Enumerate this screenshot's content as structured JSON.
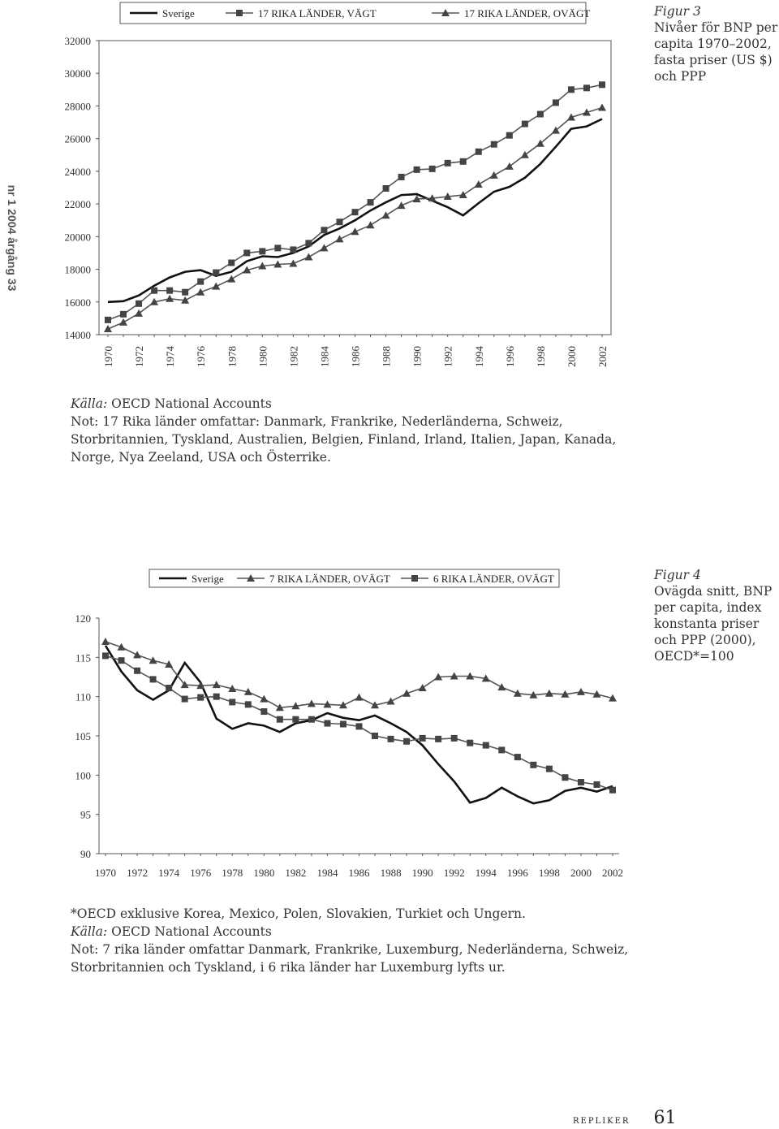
{
  "side_label": "nr 1 2004 årgång 33",
  "figure3": {
    "caption_title": "Figur 3",
    "caption_body": "Nivåer för BNP per capita 1970–2002, fasta priser (US $) och PPP",
    "source_label": "Källa:",
    "source": "OECD National Accounts",
    "note": "Not: 17 Rika länder omfattar: Danmark, Frankrike, Nederländerna, Schweiz, Storbritannien, Tyskland, Australien, Belgien, Finland, Irland, Italien, Japan, Kanada, Norge, Nya Zeeland, USA och Österrike."
  },
  "figure4": {
    "caption_title": "Figur 4",
    "caption_body": "Ovägda snitt, BNP per capita, index konstanta priser och PPP (2000), OECD*=100",
    "footnote": "*OECD exklusive Korea, Mexico, Polen, Slovakien, Turkiet och Ungern.",
    "source_label": "Källa:",
    "source": "OECD National Accounts",
    "note": "Not: 7 rika länder omfattar Danmark, Frankrike, Luxemburg, Nederländerna, Schweiz, Storbritannien och Tyskland, i 6 rika länder har Luxemburg lyfts ur."
  },
  "footer": {
    "journal": "repliker",
    "page": "61"
  },
  "chart_data": [
    {
      "type": "line",
      "title": "",
      "xlabel": "",
      "ylabel": "",
      "x": [
        1970,
        1971,
        1972,
        1973,
        1974,
        1975,
        1976,
        1977,
        1978,
        1979,
        1980,
        1981,
        1982,
        1983,
        1984,
        1985,
        1986,
        1987,
        1988,
        1989,
        1990,
        1991,
        1992,
        1993,
        1994,
        1995,
        1996,
        1997,
        1998,
        1999,
        2000,
        2001,
        2002
      ],
      "xticks": [
        "1970",
        "1972",
        "1974",
        "1976",
        "1978",
        "1980",
        "1982",
        "1984",
        "1986",
        "1988",
        "1990",
        "1992",
        "1994",
        "1996",
        "1998",
        "2000",
        "2002"
      ],
      "ylim": [
        14000,
        32000
      ],
      "yticks": [
        "14000",
        "16000",
        "18000",
        "20000",
        "22000",
        "24000",
        "26000",
        "28000",
        "30000",
        "32000"
      ],
      "legend_position": "top",
      "grid": false,
      "series": [
        {
          "name": "Sverige",
          "marker": "none",
          "values": [
            16000,
            16050,
            16400,
            17000,
            17500,
            17850,
            17950,
            17600,
            17850,
            18500,
            18800,
            18750,
            19000,
            19400,
            20100,
            20500,
            21000,
            21600,
            22100,
            22550,
            22600,
            22200,
            21800,
            21300,
            22050,
            22750,
            23050,
            23600,
            24450,
            25500,
            26600,
            26750,
            27200
          ]
        },
        {
          "name": "17 RIKA LÄNDER, VÄGT",
          "marker": "square",
          "values": [
            14900,
            15250,
            15900,
            16700,
            16700,
            16600,
            17250,
            17800,
            18400,
            19000,
            19100,
            19300,
            19200,
            19600,
            20400,
            20900,
            21500,
            22100,
            22950,
            23650,
            24100,
            24150,
            24500,
            24600,
            25200,
            25650,
            26200,
            26900,
            27500,
            28200,
            29000,
            29100,
            29300
          ]
        },
        {
          "name": "17 RIKA LÄNDER, OVÄGT",
          "marker": "triangle",
          "values": [
            14350,
            14750,
            15300,
            16000,
            16200,
            16100,
            16600,
            16950,
            17400,
            17950,
            18200,
            18300,
            18350,
            18750,
            19300,
            19850,
            20300,
            20700,
            21300,
            21900,
            22300,
            22350,
            22450,
            22550,
            23200,
            23750,
            24300,
            25000,
            25700,
            26500,
            27300,
            27600,
            27900
          ]
        }
      ]
    },
    {
      "type": "line",
      "title": "",
      "xlabel": "",
      "ylabel": "",
      "x": [
        1970,
        1971,
        1972,
        1973,
        1974,
        1975,
        1976,
        1977,
        1978,
        1979,
        1980,
        1981,
        1982,
        1983,
        1984,
        1985,
        1986,
        1987,
        1988,
        1989,
        1990,
        1991,
        1992,
        1993,
        1994,
        1995,
        1996,
        1997,
        1998,
        1999,
        2000,
        2001,
        2002
      ],
      "xticks": [
        "1970",
        "1972",
        "1974",
        "1976",
        "1978",
        "1980",
        "1982",
        "1984",
        "1986",
        "1988",
        "1990",
        "1992",
        "1994",
        "1996",
        "1998",
        "2000",
        "2002"
      ],
      "ylim": [
        90,
        120
      ],
      "yticks": [
        "90",
        "95",
        "100",
        "105",
        "110",
        "115",
        "120"
      ],
      "legend_position": "top",
      "grid": false,
      "series": [
        {
          "name": "Sverige",
          "marker": "none",
          "values": [
            116.5,
            113.2,
            110.8,
            109.6,
            110.8,
            114.3,
            111.8,
            107.2,
            105.9,
            106.6,
            106.3,
            105.5,
            106.6,
            107.0,
            107.9,
            107.3,
            107.0,
            107.6,
            106.6,
            105.5,
            103.8,
            101.4,
            99.2,
            96.5,
            97.1,
            98.4,
            97.3,
            96.4,
            96.8,
            98.0,
            98.4,
            97.9,
            98.6
          ]
        },
        {
          "name": "7 RIKA LÄNDER, OVÄGT",
          "marker": "triangle",
          "values": [
            117.0,
            116.3,
            115.3,
            114.6,
            114.1,
            111.5,
            111.4,
            111.5,
            111.0,
            110.6,
            109.7,
            108.6,
            108.8,
            109.1,
            109.0,
            108.9,
            109.9,
            108.9,
            109.4,
            110.4,
            111.1,
            112.5,
            112.6,
            112.6,
            112.3,
            111.2,
            110.4,
            110.2,
            110.4,
            110.3,
            110.6,
            110.3,
            109.8
          ]
        },
        {
          "name": "6 RIKA LÄNDER, OVÄGT",
          "marker": "square",
          "values": [
            115.2,
            114.6,
            113.3,
            112.2,
            111.1,
            109.7,
            109.9,
            110.0,
            109.3,
            109.0,
            108.1,
            107.1,
            107.1,
            107.1,
            106.6,
            106.5,
            106.2,
            105.0,
            104.6,
            104.3,
            104.7,
            104.6,
            104.7,
            104.1,
            103.8,
            103.2,
            102.3,
            101.3,
            100.8,
            99.7,
            99.1,
            98.8,
            98.1
          ]
        }
      ]
    }
  ]
}
